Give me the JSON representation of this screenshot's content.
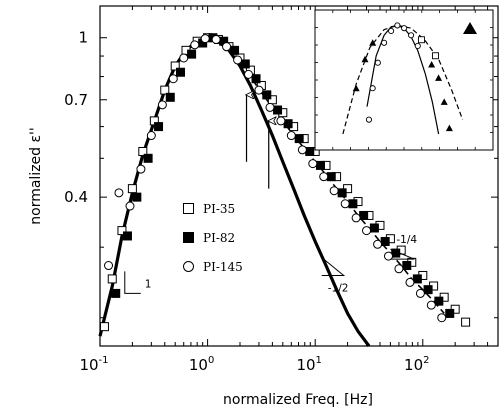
{
  "chart_data": {
    "type": "scatter",
    "title": "",
    "xlabel": "normalized Freq. [Hz]",
    "ylabel": "normalized ε''",
    "xscale": "log",
    "yscale": "log",
    "xlim": [
      0.1,
      500
    ],
    "ylim": [
      0.17,
      1.2
    ],
    "x_ticks": [
      {
        "value": 0.1,
        "base": "10",
        "exp": "-1"
      },
      {
        "value": 1,
        "base": "10",
        "exp": "0"
      },
      {
        "value": 10,
        "base": "10",
        "exp": "1"
      },
      {
        "value": 100,
        "base": "10",
        "exp": "2"
      }
    ],
    "y_ticks": [
      {
        "value": 0.4,
        "label": "0.4"
      },
      {
        "value": 0.7,
        "label": "0.7"
      },
      {
        "value": 1.0,
        "label": "1"
      }
    ],
    "legend_position": "center-left",
    "series": [
      {
        "name": "PI-35",
        "marker": "open-square",
        "x": [
          0.11,
          0.13,
          0.16,
          0.2,
          0.25,
          0.32,
          0.4,
          0.5,
          0.63,
          0.8,
          1.0,
          1.26,
          1.58,
          2.0,
          2.5,
          3.16,
          4.0,
          5.0,
          6.3,
          7.9,
          10,
          12.6,
          15.8,
          20,
          25,
          31.6,
          40,
          50,
          63,
          79,
          100,
          126,
          158,
          200,
          250
        ],
        "y": [
          0.19,
          0.25,
          0.33,
          0.42,
          0.52,
          0.62,
          0.74,
          0.85,
          0.93,
          0.98,
          1.0,
          0.99,
          0.95,
          0.89,
          0.83,
          0.76,
          0.7,
          0.65,
          0.6,
          0.56,
          0.52,
          0.48,
          0.45,
          0.42,
          0.39,
          0.36,
          0.34,
          0.315,
          0.295,
          0.275,
          0.255,
          0.24,
          0.225,
          0.21,
          0.195
        ]
      },
      {
        "name": "PI-82",
        "marker": "filled-square",
        "x": [
          0.14,
          0.18,
          0.22,
          0.28,
          0.35,
          0.45,
          0.56,
          0.71,
          0.9,
          1.12,
          1.41,
          1.78,
          2.24,
          2.82,
          3.55,
          4.47,
          5.6,
          7.1,
          8.9,
          11.2,
          14.1,
          17.8,
          22.4,
          28.2,
          35.5,
          44.7,
          56,
          71,
          89,
          112,
          141,
          178
        ],
        "y": [
          0.23,
          0.32,
          0.4,
          0.5,
          0.6,
          0.71,
          0.82,
          0.91,
          0.97,
          1.0,
          0.98,
          0.93,
          0.86,
          0.79,
          0.72,
          0.66,
          0.61,
          0.56,
          0.52,
          0.48,
          0.45,
          0.41,
          0.385,
          0.36,
          0.335,
          0.31,
          0.29,
          0.27,
          0.25,
          0.235,
          0.22,
          0.205
        ]
      },
      {
        "name": "PI-145",
        "marker": "open-circle",
        "x": [
          0.12,
          0.15,
          0.19,
          0.24,
          0.3,
          0.38,
          0.48,
          0.6,
          0.76,
          0.95,
          1.2,
          1.5,
          1.9,
          2.4,
          3.0,
          3.8,
          4.8,
          6.0,
          7.6,
          9.5,
          12,
          15,
          19,
          24,
          30,
          38,
          48,
          60,
          76,
          95,
          120,
          150
        ],
        "y": [
          0.27,
          0.41,
          0.38,
          0.47,
          0.57,
          0.68,
          0.79,
          0.89,
          0.96,
          0.995,
          0.99,
          0.95,
          0.88,
          0.81,
          0.74,
          0.67,
          0.62,
          0.57,
          0.525,
          0.485,
          0.45,
          0.415,
          0.385,
          0.355,
          0.33,
          0.305,
          0.285,
          0.265,
          0.245,
          0.23,
          0.215,
          0.2
        ]
      }
    ],
    "fit_curves": [
      {
        "style": "solid",
        "description": "thick solid fit",
        "x": [
          0.1,
          0.13,
          0.16,
          0.2,
          0.25,
          0.32,
          0.4,
          0.5,
          0.63,
          0.8,
          1.0,
          1.26,
          1.58,
          2.0,
          2.5,
          3.16,
          4.0,
          5.0,
          6.3,
          7.9,
          10,
          12.6,
          15.8,
          20,
          25,
          31.6
        ],
        "y": [
          0.18,
          0.24,
          0.32,
          0.41,
          0.51,
          0.62,
          0.74,
          0.85,
          0.93,
          0.98,
          1.0,
          0.98,
          0.93,
          0.85,
          0.76,
          0.66,
          0.57,
          0.49,
          0.42,
          0.36,
          0.31,
          0.27,
          0.235,
          0.205,
          0.185,
          0.17
        ]
      },
      {
        "style": "dashed",
        "description": "dashed fit",
        "x": [
          2.0,
          2.5,
          3.16,
          4.0,
          5.0,
          6.3,
          7.9,
          10,
          12.6,
          15.8,
          20,
          25,
          31.6,
          40,
          50,
          63,
          79,
          100,
          126,
          158
        ],
        "y": [
          0.87,
          0.8,
          0.73,
          0.67,
          0.62,
          0.57,
          0.53,
          0.49,
          0.455,
          0.42,
          0.39,
          0.36,
          0.335,
          0.31,
          0.29,
          0.27,
          0.25,
          0.235,
          0.22,
          0.205
        ]
      }
    ],
    "arrows": [
      {
        "x": 2.3,
        "y_from": 0.49,
        "y_to": 0.72
      },
      {
        "x": 3.7,
        "y_from": 0.42,
        "y_to": 0.62
      }
    ],
    "slope_triangles": [
      {
        "label": "1",
        "x": 0.17,
        "y": 0.23
      },
      {
        "label": "-1/2",
        "x": 11.5,
        "y": 0.255
      },
      {
        "label": "-1/4",
        "x": 50,
        "y": 0.28
      }
    ],
    "inset": {
      "legend_marker": "filled-triangle",
      "solid_curve_x": [
        0.6,
        0.7,
        0.8,
        0.9,
        1.0,
        1.12,
        1.26,
        1.41,
        1.6,
        1.8,
        2.0
      ],
      "solid_curve_y": [
        0.55,
        0.8,
        0.93,
        0.99,
        1.0,
        0.98,
        0.92,
        0.83,
        0.7,
        0.57,
        0.45
      ],
      "dashed_curve_x": [
        0.4,
        0.5,
        0.63,
        0.8,
        1.0,
        1.26,
        1.58,
        2.0,
        2.5,
        3.0
      ],
      "dashed_curve_y": [
        0.45,
        0.65,
        0.85,
        0.97,
        1.0,
        0.98,
        0.9,
        0.78,
        0.62,
        0.5
      ],
      "open_circles": [
        {
          "x": 0.62,
          "y": 0.5
        },
        {
          "x": 0.66,
          "y": 0.63
        },
        {
          "x": 0.72,
          "y": 0.76
        },
        {
          "x": 0.8,
          "y": 0.88
        },
        {
          "x": 0.9,
          "y": 0.96
        },
        {
          "x": 1.0,
          "y": 1.0
        },
        {
          "x": 1.12,
          "y": 0.98
        },
        {
          "x": 1.26,
          "y": 0.93
        },
        {
          "x": 1.41,
          "y": 0.86
        }
      ],
      "filled_triangles": [
        {
          "x": 0.5,
          "y": 0.63
        },
        {
          "x": 0.58,
          "y": 0.78
        },
        {
          "x": 0.66,
          "y": 0.88
        },
        {
          "x": 1.78,
          "y": 0.75
        },
        {
          "x": 2.0,
          "y": 0.68
        },
        {
          "x": 2.2,
          "y": 0.57
        },
        {
          "x": 2.4,
          "y": 0.47
        }
      ],
      "half_squares": [
        {
          "x": 1.5,
          "y": 0.9
        },
        {
          "x": 1.9,
          "y": 0.8
        }
      ]
    }
  }
}
